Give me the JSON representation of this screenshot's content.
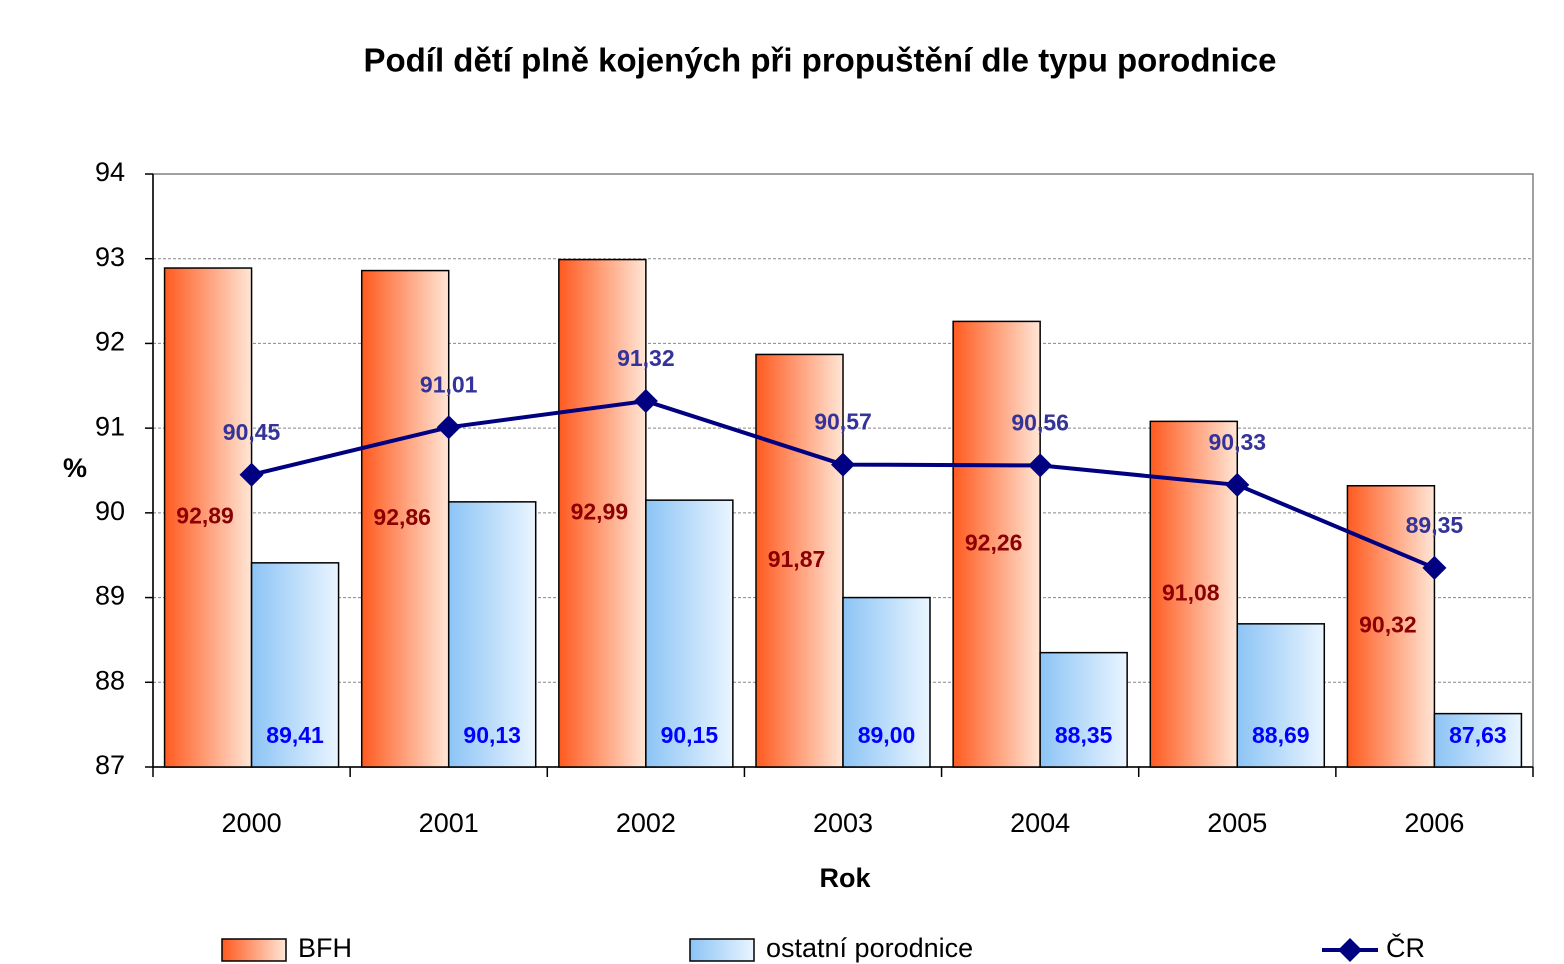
{
  "chart_data": {
    "type": "bar",
    "title": "Podíl dětí plně kojených při propuštění dle typu porodnice",
    "x_label": "Rok",
    "y_label": "%",
    "categories": [
      "2000",
      "2001",
      "2002",
      "2003",
      "2004",
      "2005",
      "2006"
    ],
    "series": [
      {
        "name": "BFH",
        "type": "bar",
        "color": "#ff5a1f",
        "values": [
          92.89,
          92.86,
          92.99,
          91.87,
          92.26,
          91.08,
          90.32
        ],
        "value_labels": [
          "92,89",
          "92,86",
          "92,99",
          "91,87",
          "92,26",
          "91,08",
          "90,32"
        ]
      },
      {
        "name": "ostatní porodnice",
        "type": "bar",
        "color": "#8cc4f5",
        "values": [
          89.41,
          90.13,
          90.15,
          89.0,
          88.35,
          88.69,
          87.63
        ],
        "value_labels": [
          "89,41",
          "90,13",
          "90,15",
          "89,00",
          "88,35",
          "88,69",
          "87,63"
        ]
      },
      {
        "name": "ČR",
        "type": "line",
        "color": "#000080",
        "values": [
          90.45,
          91.01,
          91.32,
          90.57,
          90.56,
          90.33,
          89.35
        ],
        "value_labels": [
          "90,45",
          "91,01",
          "91,32",
          "90,57",
          "90,56",
          "90,33",
          "89,35"
        ]
      }
    ],
    "ylim": [
      87,
      94
    ],
    "yticks": [
      87,
      88,
      89,
      90,
      91,
      92,
      93,
      94
    ],
    "grid": true
  }
}
